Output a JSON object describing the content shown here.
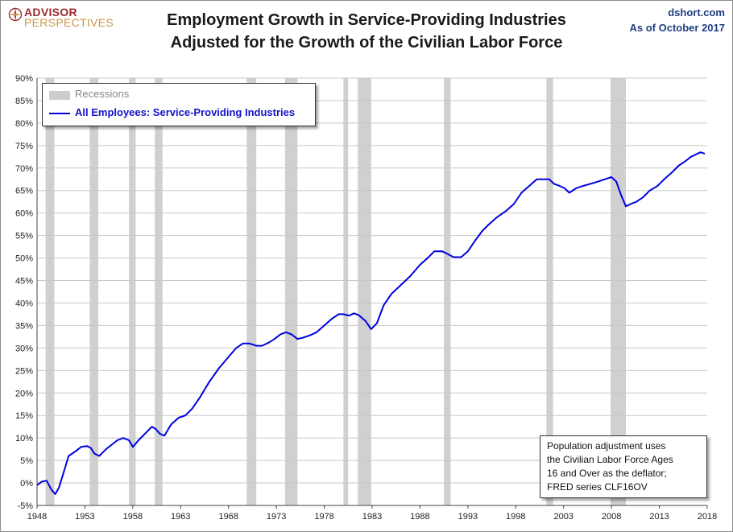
{
  "header": {
    "logo_line1": "ADVISOR",
    "logo_line2": "PERSPECTIVES",
    "title_line1": "Employment Growth in Service-Providing Industries",
    "title_line2": "Adjusted for the Growth of the Civilian Labor Force",
    "source": "dshort.com",
    "as_of": "As of October 2017"
  },
  "legend": {
    "recessions": "Recessions",
    "series": "All Employees: Service-Providing Industries"
  },
  "note": {
    "lines": [
      "Population adjustment uses",
      "the Civilian Labor Force Ages",
      "16 and Over as the deflator;",
      "FRED series  CLF16OV"
    ]
  },
  "colors": {
    "series": "#0000e0",
    "recession": "#d0d0d0",
    "grid": "#c8c8c8"
  },
  "chart_data": {
    "type": "line",
    "title": "Employment Growth in Service-Providing Industries Adjusted for the Growth of the Civilian Labor Force",
    "xlabel": "",
    "ylabel": "",
    "xlim": [
      1948,
      2018
    ],
    "ylim": [
      -5,
      90
    ],
    "x_ticks": [
      "1948",
      "1953",
      "1958",
      "1963",
      "1968",
      "1973",
      "1978",
      "1983",
      "1988",
      "1993",
      "1998",
      "2003",
      "2008",
      "2013",
      "2018"
    ],
    "y_ticks": [
      "-5%",
      "0%",
      "5%",
      "10%",
      "15%",
      "20%",
      "25%",
      "30%",
      "35%",
      "40%",
      "45%",
      "50%",
      "55%",
      "60%",
      "65%",
      "70%",
      "75%",
      "80%",
      "85%",
      "90%"
    ],
    "grid": true,
    "legend_position": "top-left",
    "recessions": [
      [
        1948.9,
        1949.8
      ],
      [
        1953.5,
        1954.4
      ],
      [
        1957.6,
        1958.3
      ],
      [
        1960.3,
        1961.1
      ],
      [
        1969.9,
        1970.9
      ],
      [
        1973.9,
        1975.2
      ],
      [
        1980.0,
        1980.5
      ],
      [
        1981.5,
        1982.9
      ],
      [
        1990.5,
        1991.2
      ],
      [
        2001.2,
        2001.9
      ],
      [
        2007.9,
        2009.5
      ]
    ],
    "series": [
      {
        "name": "All Employees: Service-Providing Industries",
        "x": [
          1948.0,
          1948.5,
          1949.0,
          1949.5,
          1949.9,
          1950.3,
          1950.8,
          1951.3,
          1952.0,
          1952.6,
          1953.2,
          1953.6,
          1954.0,
          1954.5,
          1955.2,
          1955.8,
          1956.4,
          1957.0,
          1957.6,
          1958.0,
          1958.6,
          1959.3,
          1960.0,
          1960.4,
          1960.8,
          1961.3,
          1962.0,
          1962.8,
          1963.5,
          1964.2,
          1965.0,
          1966.0,
          1967.0,
          1968.0,
          1968.8,
          1969.5,
          1970.2,
          1970.9,
          1971.5,
          1972.2,
          1972.8,
          1973.4,
          1974.0,
          1974.6,
          1975.2,
          1975.8,
          1976.5,
          1977.2,
          1978.0,
          1978.8,
          1979.5,
          1980.0,
          1980.6,
          1981.1,
          1981.6,
          1982.3,
          1982.9,
          1983.5,
          1984.2,
          1985.0,
          1986.0,
          1987.0,
          1988.0,
          1988.8,
          1989.5,
          1990.3,
          1990.8,
          1991.5,
          1992.3,
          1993.0,
          1993.8,
          1994.5,
          1995.2,
          1996.0,
          1997.0,
          1997.8,
          1998.6,
          1999.4,
          2000.2,
          2000.9,
          2001.5,
          2002.0,
          2002.6,
          2003.1,
          2003.6,
          2004.3,
          2005.0,
          2005.8,
          2006.6,
          2007.3,
          2008.0,
          2008.5,
          2009.0,
          2009.5,
          2010.0,
          2010.6,
          2011.3,
          2012.0,
          2012.8,
          2013.5,
          2014.3,
          2015.0,
          2015.7,
          2016.3,
          2016.8,
          2017.3,
          2017.75
        ],
        "values": [
          -0.5,
          0.3,
          0.5,
          -1.5,
          -2.5,
          -1.0,
          2.5,
          6.0,
          7.0,
          8.0,
          8.2,
          7.8,
          6.5,
          6.0,
          7.5,
          8.5,
          9.5,
          10.0,
          9.5,
          8.0,
          9.5,
          11.0,
          12.5,
          12.0,
          11.0,
          10.5,
          13.0,
          14.5,
          15.0,
          16.5,
          19.0,
          22.5,
          25.5,
          28.0,
          30.0,
          31.0,
          31.0,
          30.5,
          30.5,
          31.2,
          32.0,
          33.0,
          33.5,
          33.0,
          32.0,
          32.3,
          32.8,
          33.5,
          35.0,
          36.5,
          37.5,
          37.5,
          37.2,
          37.7,
          37.3,
          36.0,
          34.2,
          35.5,
          39.5,
          42.0,
          44.0,
          46.0,
          48.5,
          50.0,
          51.5,
          51.5,
          51.0,
          50.2,
          50.2,
          51.5,
          54.0,
          56.0,
          57.5,
          59.0,
          60.5,
          62.0,
          64.5,
          66.0,
          67.5,
          67.5,
          67.5,
          66.5,
          66.0,
          65.5,
          64.5,
          65.5,
          66.0,
          66.5,
          67.0,
          67.5,
          68.0,
          67.0,
          64.0,
          61.5,
          62.0,
          62.5,
          63.5,
          65.0,
          66.0,
          67.5,
          69.0,
          70.5,
          71.5,
          72.5,
          73.0,
          73.5,
          73.2
        ]
      }
    ]
  }
}
